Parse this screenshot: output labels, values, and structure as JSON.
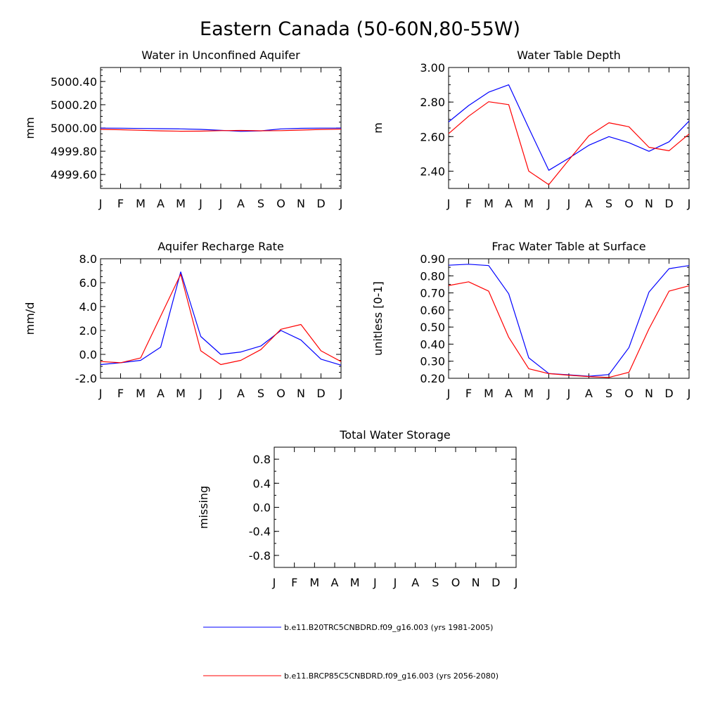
{
  "title": "Eastern Canada (50-60N,80-55W)",
  "colors": {
    "blue": "#0000ff",
    "red": "#ff0000",
    "axis": "#000000"
  },
  "chart_data": [
    {
      "type": "line",
      "title": "Water in Unconfined Aquifer",
      "ylabel": "mm",
      "xlabel": "",
      "categories": [
        "J",
        "F",
        "M",
        "A",
        "M",
        "J",
        "J",
        "A",
        "S",
        "O",
        "N",
        "D",
        "J"
      ],
      "ylim": [
        4999.48,
        5000.52
      ],
      "yticks": [
        4999.6,
        4999.8,
        5000.0,
        5000.2,
        5000.4
      ],
      "ytick_labels": [
        "4999.60",
        "4999.80",
        "5000.00",
        "5000.20",
        "5000.40"
      ],
      "yminor": 0.05,
      "series": [
        {
          "name": "b.e11.B20TRC5CNBDRD.f09_g16.003 (yrs 1981-2005)",
          "color": "#0000ff",
          "values": [
            4999.999,
            4999.998,
            4999.996,
            4999.994,
            4999.992,
            4999.988,
            4999.98,
            4999.971,
            4999.975,
            4999.992,
            4999.997,
            4999.999,
            4999.999
          ]
        },
        {
          "name": "b.e11.BRCP85C5CNBDRD.f09_g16.003 (yrs 2056-2080)",
          "color": "#ff0000",
          "values": [
            4999.988,
            4999.985,
            4999.98,
            4999.975,
            4999.972,
            4999.973,
            4999.977,
            4999.979,
            4999.976,
            4999.977,
            4999.982,
            4999.987,
            4999.99
          ]
        }
      ]
    },
    {
      "type": "line",
      "title": "Water Table Depth",
      "ylabel": "m",
      "xlabel": "",
      "categories": [
        "J",
        "F",
        "M",
        "A",
        "M",
        "J",
        "J",
        "A",
        "S",
        "O",
        "N",
        "D",
        "J"
      ],
      "ylim": [
        2.3,
        3.0
      ],
      "yticks": [
        2.4,
        2.6,
        2.8,
        3.0
      ],
      "ytick_labels": [
        "2.40",
        "2.60",
        "2.80",
        "3.00"
      ],
      "yminor": 0.05,
      "series": [
        {
          "name": "b.e11.B20TRC5CNBDRD.f09_g16.003 (yrs 1981-2005)",
          "color": "#0000ff",
          "values": [
            2.685,
            2.78,
            2.857,
            2.9,
            2.65,
            2.405,
            2.475,
            2.55,
            2.6,
            2.565,
            2.515,
            2.57,
            2.69
          ]
        },
        {
          "name": "b.e11.BRCP85C5CNBDRD.f09_g16.003 (yrs 2056-2080)",
          "color": "#ff0000",
          "values": [
            2.617,
            2.718,
            2.802,
            2.785,
            2.4,
            2.322,
            2.465,
            2.605,
            2.68,
            2.657,
            2.538,
            2.518,
            2.615
          ]
        }
      ]
    },
    {
      "type": "line",
      "title": "Aquifer Recharge Rate",
      "ylabel": "mm/d",
      "xlabel": "",
      "categories": [
        "J",
        "F",
        "M",
        "A",
        "M",
        "J",
        "J",
        "A",
        "S",
        "O",
        "N",
        "D",
        "J"
      ],
      "ylim": [
        -2.0,
        8.0
      ],
      "yticks": [
        -2.0,
        0.0,
        2.0,
        4.0,
        6.0,
        8.0
      ],
      "ytick_labels": [
        "-2.0",
        "0.0",
        "2.0",
        "4.0",
        "6.0",
        "8.0"
      ],
      "yminor": 0.5,
      "series": [
        {
          "name": "b.e11.B20TRC5CNBDRD.f09_g16.003 (yrs 1981-2005)",
          "color": "#0000ff",
          "values": [
            -0.85,
            -0.7,
            -0.5,
            0.6,
            6.9,
            1.5,
            0.0,
            0.2,
            0.7,
            2.0,
            1.2,
            -0.4,
            -0.9
          ]
        },
        {
          "name": "b.e11.BRCP85C5CNBDRD.f09_g16.003 (yrs 2056-2080)",
          "color": "#ff0000",
          "values": [
            -0.6,
            -0.7,
            -0.3,
            3.2,
            6.7,
            0.3,
            -0.85,
            -0.5,
            0.4,
            2.1,
            2.5,
            0.3,
            -0.6
          ]
        }
      ]
    },
    {
      "type": "line",
      "title": "Frac Water Table at Surface",
      "ylabel": "unitless [0-1]",
      "xlabel": "",
      "categories": [
        "J",
        "F",
        "M",
        "A",
        "M",
        "J",
        "J",
        "A",
        "S",
        "O",
        "N",
        "D",
        "J"
      ],
      "ylim": [
        0.2,
        0.9
      ],
      "yticks": [
        0.2,
        0.3,
        0.4,
        0.5,
        0.6,
        0.7,
        0.8,
        0.9
      ],
      "ytick_labels": [
        "0.20",
        "0.30",
        "0.40",
        "0.50",
        "0.60",
        "0.70",
        "0.80",
        "0.90"
      ],
      "yminor": 0.05,
      "series": [
        {
          "name": "b.e11.B20TRC5CNBDRD.f09_g16.003 (yrs 1981-2005)",
          "color": "#0000ff",
          "values": [
            0.862,
            0.868,
            0.86,
            0.695,
            0.32,
            0.228,
            0.22,
            0.212,
            0.222,
            0.38,
            0.705,
            0.842,
            0.86
          ]
        },
        {
          "name": "b.e11.BRCP85C5CNBDRD.f09_g16.003 (yrs 2056-2080)",
          "color": "#ff0000",
          "values": [
            0.743,
            0.765,
            0.71,
            0.44,
            0.256,
            0.227,
            0.218,
            0.21,
            0.205,
            0.235,
            0.49,
            0.71,
            0.742
          ]
        }
      ]
    },
    {
      "type": "line",
      "title": "Total Water Storage",
      "ylabel": "missing",
      "xlabel": "",
      "categories": [
        "J",
        "F",
        "M",
        "A",
        "M",
        "J",
        "J",
        "A",
        "S",
        "O",
        "N",
        "D",
        "J"
      ],
      "ylim": [
        -1.0,
        1.0
      ],
      "yticks": [
        -0.8,
        -0.4,
        0.0,
        0.4,
        0.8
      ],
      "ytick_labels": [
        "-0.8",
        "-0.4",
        "0.0",
        "0.4",
        "0.8"
      ],
      "yminor": 0.2,
      "series": []
    }
  ],
  "legend": [
    {
      "label": "b.e11.B20TRC5CNBDRD.f09_g16.003 (yrs 1981-2005)",
      "color": "#0000ff"
    },
    {
      "label": "b.e11.BRCP85C5CNBDRD.f09_g16.003 (yrs 2056-2080)",
      "color": "#ff0000"
    }
  ]
}
